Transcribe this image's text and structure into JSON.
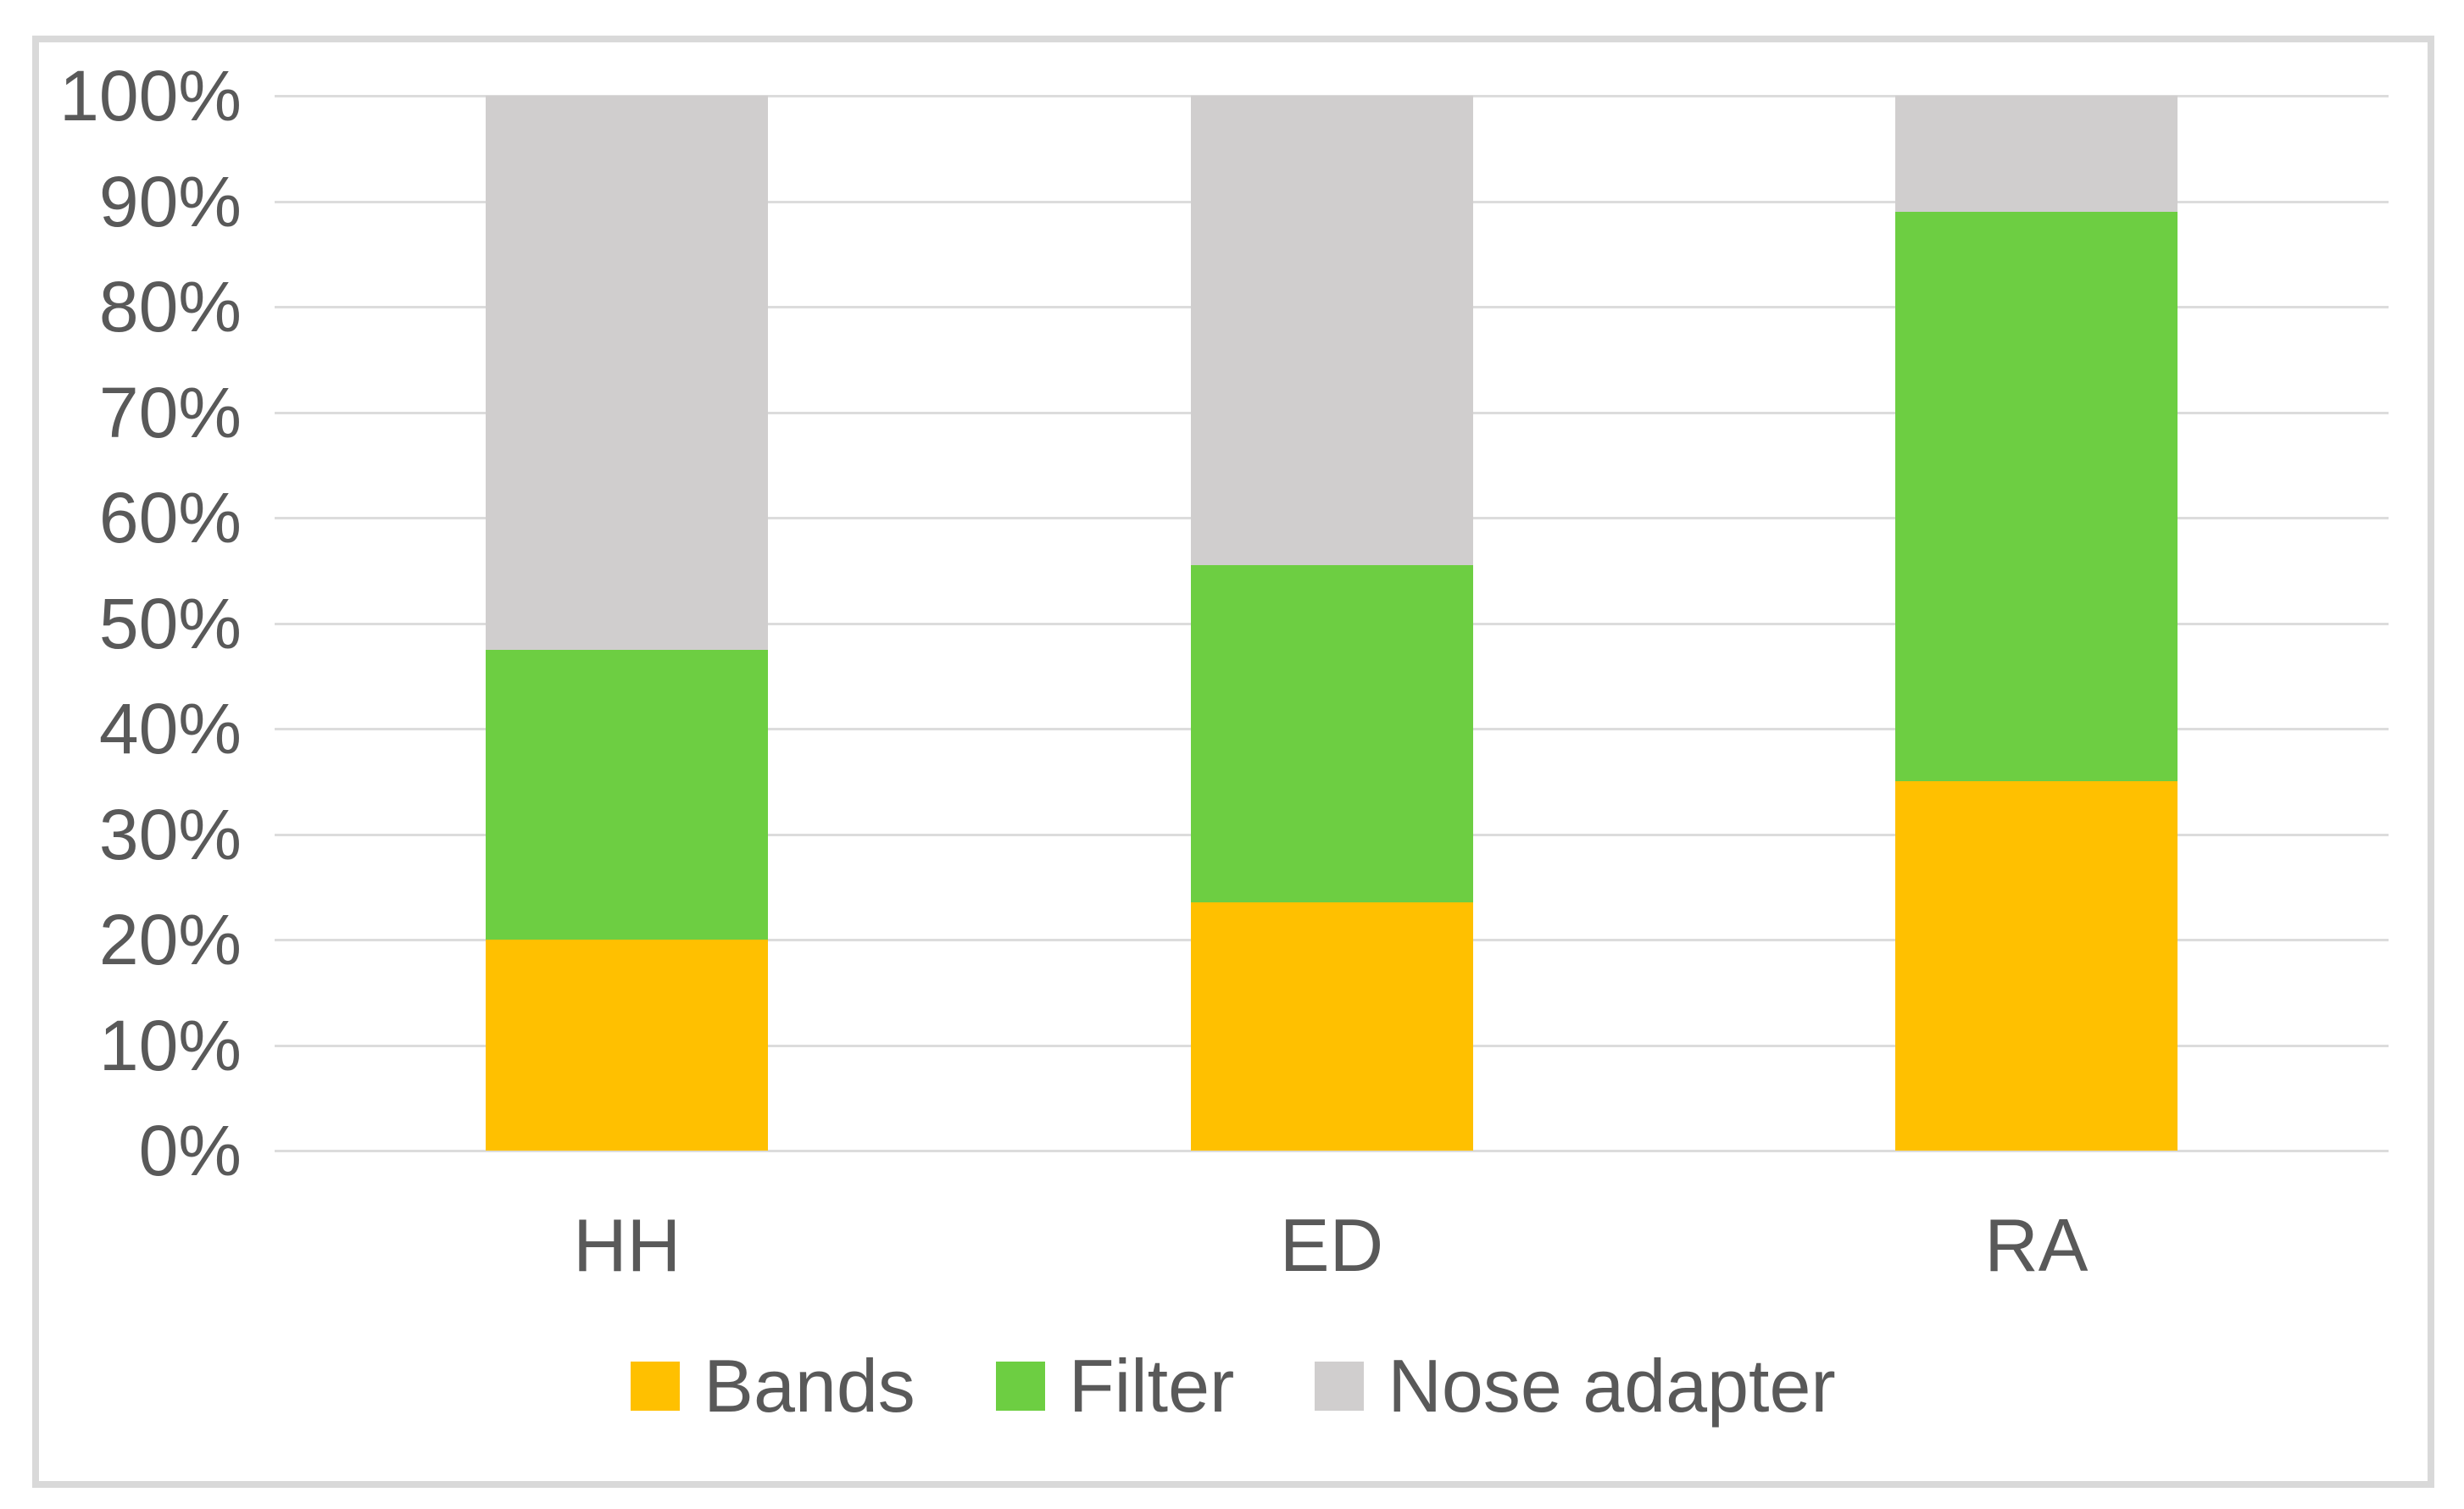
{
  "chart_data": {
    "type": "bar",
    "stacking": "percent",
    "title": "",
    "xlabel": "",
    "ylabel": "",
    "categories": [
      "HH",
      "ED",
      "RA"
    ],
    "series": [
      {
        "name": "Bands",
        "color": "#FFC000",
        "values": [
          20,
          23.5,
          35
        ]
      },
      {
        "name": "Filter",
        "color": "#6DCE42",
        "values": [
          27.5,
          32,
          54
        ]
      },
      {
        "name": "Nose adapter",
        "color": "#D0CECE",
        "values": [
          52.5,
          44.5,
          11
        ]
      }
    ],
    "y_axis": {
      "min": 0,
      "max": 100,
      "step": 10,
      "format": "percent",
      "ticks": [
        "100%",
        "90%",
        "80%",
        "70%",
        "60%",
        "50%",
        "40%",
        "30%",
        "20%",
        "10%",
        "0%"
      ]
    },
    "grid": true,
    "legend": {
      "position": "bottom",
      "entries": [
        "Bands",
        "Filter",
        "Nose adapter"
      ]
    },
    "colors": {
      "background": "#FFFFFF",
      "frame_border": "#D9D9D9",
      "gridline": "#DCDCDC",
      "text": "#595959"
    }
  }
}
